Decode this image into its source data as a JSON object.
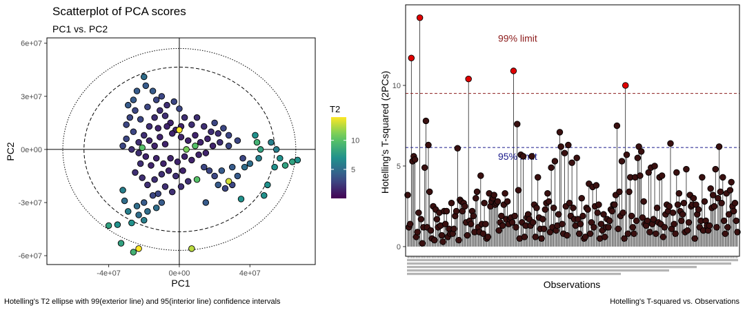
{
  "chart_data": [
    {
      "type": "scatter",
      "title": "Scatterplot of PCA scores",
      "subtitle": "PC1 vs. PC2",
      "xlabel": "PC1",
      "ylabel": "PC2",
      "caption": "Hotelling's T2 ellipse with 99(exterior line) and 95(interior line) confidence intervals",
      "xlim": [
        -75000000,
        77000000
      ],
      "ylim": [
        -65000000,
        63000000
      ],
      "xticks": [
        -40000000,
        0,
        40000000
      ],
      "xtick_labels": [
        "-4e+07",
        "0e+00",
        "4e+07"
      ],
      "yticks": [
        60000000,
        30000000,
        0,
        -30000000,
        -60000000
      ],
      "ytick_labels": [
        "6e+07",
        "3e+07",
        "0e+00",
        "-3e+07",
        "-6e+07"
      ],
      "ellipse_95": {
        "rx": 54000000,
        "ry": 46500000
      },
      "ellipse_99": {
        "rx": 66000000,
        "ry": 57000000
      },
      "color_scale": {
        "title": "T2",
        "min": 0,
        "max": 14,
        "ticks": [
          5,
          10
        ],
        "tick_labels": [
          "5",
          "10"
        ]
      },
      "points": [
        {
          "x": -40000000,
          "y": -43000000,
          "t2": 8
        },
        {
          "x": -35000000,
          "y": -42500000,
          "t2": 7
        },
        {
          "x": -33000000,
          "y": -53000000,
          "t2": 8
        },
        {
          "x": -26000000,
          "y": -58000000,
          "t2": 9
        },
        {
          "x": -23000000,
          "y": -56000000,
          "t2": 14
        },
        {
          "x": 7000000,
          "y": -56000000,
          "t2": 12.5
        },
        {
          "x": -27000000,
          "y": -41500000,
          "t2": 7
        },
        {
          "x": -20000000,
          "y": -40000000,
          "t2": 6
        },
        {
          "x": -32000000,
          "y": -23000000,
          "t2": 6
        },
        {
          "x": -31000000,
          "y": -29000000,
          "t2": 5
        },
        {
          "x": -29000000,
          "y": -35000000,
          "t2": 6
        },
        {
          "x": -24000000,
          "y": -32000000,
          "t2": 5
        },
        {
          "x": -23000000,
          "y": -37000000,
          "t2": 5
        },
        {
          "x": -18000000,
          "y": -35000000,
          "t2": 5
        },
        {
          "x": -20000000,
          "y": -30000000,
          "t2": 4
        },
        {
          "x": -13000000,
          "y": -33000000,
          "t2": 5
        },
        {
          "x": -10000000,
          "y": -30000000,
          "t2": 4
        },
        {
          "x": -12000000,
          "y": -25000000,
          "t2": 3
        },
        {
          "x": 15000000,
          "y": -30000000,
          "t2": 4
        },
        {
          "x": 10000000,
          "y": -17000000,
          "t2": 10
        },
        {
          "x": 28000000,
          "y": -18000000,
          "t2": 13
        },
        {
          "x": 35000000,
          "y": -28000000,
          "t2": 7
        },
        {
          "x": 48000000,
          "y": -26000000,
          "t2": 7
        },
        {
          "x": 50000000,
          "y": -20000000,
          "t2": 7
        },
        {
          "x": 54000000,
          "y": -10000000,
          "t2": 7
        },
        {
          "x": 57000000,
          "y": -5000000,
          "t2": 7
        },
        {
          "x": 60000000,
          "y": -9000000,
          "t2": 8
        },
        {
          "x": 64000000,
          "y": -7000000,
          "t2": 8
        },
        {
          "x": 67000000,
          "y": -6000000,
          "t2": 7
        },
        {
          "x": 55000000,
          "y": 0,
          "t2": 6
        },
        {
          "x": 52000000,
          "y": 4000000,
          "t2": 6
        },
        {
          "x": 44000000,
          "y": 4000000,
          "t2": 9
        },
        {
          "x": 46000000,
          "y": 0,
          "t2": 8
        },
        {
          "x": 43000000,
          "y": 8000000,
          "t2": 7
        },
        {
          "x": 45000000,
          "y": -5000000,
          "t2": 6
        },
        {
          "x": 40000000,
          "y": -8000000,
          "t2": 5
        },
        {
          "x": 37000000,
          "y": -10000000,
          "t2": 5
        },
        {
          "x": 30000000,
          "y": -10000000,
          "t2": 4
        },
        {
          "x": 24000000,
          "y": -12000000,
          "t2": 4
        },
        {
          "x": 20000000,
          "y": -15000000,
          "t2": 3
        },
        {
          "x": 17000000,
          "y": -12000000,
          "t2": 3
        },
        {
          "x": 14000000,
          "y": -10000000,
          "t2": 3
        },
        {
          "x": 22000000,
          "y": -20000000,
          "t2": 4
        },
        {
          "x": 26000000,
          "y": -22000000,
          "t2": 3
        },
        {
          "x": 30000000,
          "y": -20000000,
          "t2": 3
        },
        {
          "x": 33000000,
          "y": -15000000,
          "t2": 4
        },
        {
          "x": 36000000,
          "y": -5000000,
          "t2": 3
        },
        {
          "x": 33000000,
          "y": 5000000,
          "t2": 3
        },
        {
          "x": 28000000,
          "y": 8000000,
          "t2": 3
        },
        {
          "x": 23000000,
          "y": 4000000,
          "t2": 2
        },
        {
          "x": 25000000,
          "y": 12000000,
          "t2": 3
        },
        {
          "x": 20000000,
          "y": 15000000,
          "t2": 3
        },
        {
          "x": 18000000,
          "y": 10000000,
          "t2": 2
        },
        {
          "x": 14000000,
          "y": 13000000,
          "t2": 2
        },
        {
          "x": 10000000,
          "y": 18000000,
          "t2": 2
        },
        {
          "x": 7000000,
          "y": 14000000,
          "t2": 2
        },
        {
          "x": 3000000,
          "y": 18000000,
          "t2": 2
        },
        {
          "x": 0,
          "y": 23000000,
          "t2": 3
        },
        {
          "x": -3000000,
          "y": 27000000,
          "t2": 3
        },
        {
          "x": -7000000,
          "y": 25000000,
          "t2": 2
        },
        {
          "x": -10000000,
          "y": 30000000,
          "t2": 3
        },
        {
          "x": -13000000,
          "y": 28000000,
          "t2": 3
        },
        {
          "x": -15000000,
          "y": 33000000,
          "t2": 4
        },
        {
          "x": -19000000,
          "y": 36000000,
          "t2": 4
        },
        {
          "x": -20000000,
          "y": 41000000,
          "t2": 5
        },
        {
          "x": -24000000,
          "y": 33000000,
          "t2": 4
        },
        {
          "x": -26000000,
          "y": 28000000,
          "t2": 4
        },
        {
          "x": -29000000,
          "y": 25000000,
          "t2": 4
        },
        {
          "x": -25000000,
          "y": 22000000,
          "t2": 3
        },
        {
          "x": -28000000,
          "y": 18000000,
          "t2": 3
        },
        {
          "x": -30000000,
          "y": 14000000,
          "t2": 3
        },
        {
          "x": -26000000,
          "y": 10000000,
          "t2": 3
        },
        {
          "x": -30000000,
          "y": 6000000,
          "t2": 3
        },
        {
          "x": -32000000,
          "y": 2000000,
          "t2": 3
        },
        {
          "x": -27000000,
          "y": 0,
          "t2": 2
        },
        {
          "x": -23000000,
          "y": 4000000,
          "t2": 2
        },
        {
          "x": -20000000,
          "y": 8000000,
          "t2": 2
        },
        {
          "x": -17000000,
          "y": 13000000,
          "t2": 2
        },
        {
          "x": -14000000,
          "y": 18000000,
          "t2": 2
        },
        {
          "x": -11000000,
          "y": 22000000,
          "t2": 2
        },
        {
          "x": -8000000,
          "y": 19000000,
          "t2": 2
        },
        {
          "x": -5000000,
          "y": 15000000,
          "t2": 1.5
        },
        {
          "x": -2000000,
          "y": 11000000,
          "t2": 1.5
        },
        {
          "x": 1000000,
          "y": 7000000,
          "t2": 1.5
        },
        {
          "x": 5000000,
          "y": 5000000,
          "t2": 1.5
        },
        {
          "x": 9000000,
          "y": 8000000,
          "t2": 1.5
        },
        {
          "x": 12000000,
          "y": 4000000,
          "t2": 1.5
        },
        {
          "x": 16000000,
          "y": 6000000,
          "t2": 1.5
        },
        {
          "x": 19000000,
          "y": 2000000,
          "t2": 1.5
        },
        {
          "x": 15000000,
          "y": -2000000,
          "t2": 1.5
        },
        {
          "x": 11000000,
          "y": -3000000,
          "t2": 1.5
        },
        {
          "x": 7000000,
          "y": -6000000,
          "t2": 1.5
        },
        {
          "x": 3000000,
          "y": -4000000,
          "t2": 1.5
        },
        {
          "x": -1000000,
          "y": -7000000,
          "t2": 1.5
        },
        {
          "x": -5000000,
          "y": -5000000,
          "t2": 1.5
        },
        {
          "x": -9000000,
          "y": -8000000,
          "t2": 1.5
        },
        {
          "x": -13000000,
          "y": -5000000,
          "t2": 1.5
        },
        {
          "x": -16000000,
          "y": -9000000,
          "t2": 1.5
        },
        {
          "x": -19000000,
          "y": -4000000,
          "t2": 1.5
        },
        {
          "x": -22000000,
          "y": -8000000,
          "t2": 2
        },
        {
          "x": -25000000,
          "y": -13000000,
          "t2": 2
        },
        {
          "x": -21000000,
          "y": -16000000,
          "t2": 2
        },
        {
          "x": -18000000,
          "y": -20000000,
          "t2": 2
        },
        {
          "x": -14000000,
          "y": -17000000,
          "t2": 2
        },
        {
          "x": -10000000,
          "y": -14000000,
          "t2": 2
        },
        {
          "x": -6000000,
          "y": -12000000,
          "t2": 1.5
        },
        {
          "x": -2000000,
          "y": -15000000,
          "t2": 2
        },
        {
          "x": 2000000,
          "y": -12000000,
          "t2": 1.5
        },
        {
          "x": 5000000,
          "y": -18000000,
          "t2": 2
        },
        {
          "x": 1000000,
          "y": -21000000,
          "t2": 2
        },
        {
          "x": -4000000,
          "y": -24000000,
          "t2": 2
        },
        {
          "x": -8000000,
          "y": -21000000,
          "t2": 2
        },
        {
          "x": -15000000,
          "y": -26000000,
          "t2": 3
        },
        {
          "x": -8000000,
          "y": 3000000,
          "t2": 1.5
        },
        {
          "x": -11000000,
          "y": 7000000,
          "t2": 1.5
        },
        {
          "x": -14000000,
          "y": 2000000,
          "t2": 1.5
        },
        {
          "x": -17000000,
          "y": 5000000,
          "t2": 1.5
        },
        {
          "x": -4000000,
          "y": 9000000,
          "t2": 1.5
        },
        {
          "x": -7000000,
          "y": 13000000,
          "t2": 1.5
        },
        {
          "x": -12000000,
          "y": 12000000,
          "t2": 1.5
        },
        {
          "x": 1000000,
          "y": 13000000,
          "t2": 1.5
        },
        {
          "x": -18000000,
          "y": 24000000,
          "t2": 3
        },
        {
          "x": -22000000,
          "y": 17000000,
          "t2": 3
        },
        {
          "x": -23000000,
          "y": -2000000,
          "t2": 2
        },
        {
          "x": -21000000,
          "y": 1000000,
          "t2": 10
        },
        {
          "x": 0,
          "y": 11000000,
          "t2": 14
        },
        {
          "x": 4000000,
          "y": 0,
          "t2": 11
        },
        {
          "x": 9000000,
          "y": 2000000,
          "t2": 10
        },
        {
          "x": 22000000,
          "y": 9000000,
          "t2": 2
        },
        {
          "x": 28000000,
          "y": 2000000,
          "t2": 3
        }
      ]
    },
    {
      "type": "scatter",
      "subtype": "lollipop",
      "title": "",
      "xlabel": "Observations",
      "ylabel": "Hotelling's T-squared (2PCs)",
      "caption": "Hotelling's T-squared vs. Observations",
      "ylim": [
        -0.6,
        15
      ],
      "yticks": [
        0,
        5,
        10
      ],
      "ytick_labels": [
        "0",
        "5",
        "10"
      ],
      "limits": [
        {
          "label": "99% limit",
          "value": 9.5,
          "color": "#8b1a1a"
        },
        {
          "label": "95% limit",
          "value": 6.15,
          "color": "#1a1a8b"
        }
      ],
      "values": [
        3.2,
        1.2,
        1.4,
        11.7,
        5.3,
        5.6,
        5.4,
        0.6,
        0.9,
        2.1,
        14.2,
        1.7,
        0.2,
        1.2,
        4.9,
        7.8,
        1.2,
        6.3,
        3.4,
        1.0,
        0.5,
        2.5,
        0.4,
        2.3,
        1.7,
        1.2,
        2.1,
        1.3,
        0.7,
        0.3,
        2.2,
        1.4,
        2.2,
        0.6,
        1.1,
        0.8,
        2.7,
        0.8,
        1.1,
        1.9,
        2.2,
        6.1,
        0.4,
        2.9,
        2.8,
        2.2,
        2.7,
        2.5,
        1.5,
        0.7,
        10.4,
        1.6,
        1.4,
        2.2,
        1.9,
        0.9,
        3.0,
        3.4,
        1.2,
        0.9,
        4.4,
        1.4,
        0.8,
        2.7,
        1.4,
        0.5,
        0.6,
        3.3,
        2.5,
        2.8,
        3.0,
        3.2,
        2.6,
        2.7,
        2.8,
        1.0,
        1.5,
        1.9,
        1.3,
        2.6,
        3.3,
        1.7,
        2.8,
        1.4,
        1.7,
        1.8,
        1.5,
        10.9,
        1.9,
        1.2,
        7.6,
        3.5,
        0.5,
        5.7,
        1.5,
        5.6,
        0.6,
        1.3,
        1.8,
        2.0,
        1.7,
        1.3,
        5.6,
        1.5,
        2.6,
        0.6,
        2.4,
        4.3,
        1.8,
        1.1,
        0.5,
        1.7,
        1.1,
        2.3,
        2.7,
        3.3,
        2.8,
        0.9,
        4.9,
        1.2,
        2.4,
        5.3,
        1.0,
        1.3,
        2.0,
        7.1,
        6.2,
        1.4,
        0.8,
        5.8,
        2.5,
        0.7,
        6.3,
        2.7,
        1.9,
        5.2,
        2.4,
        1.7,
        1.3,
        5.5,
        1.7,
        0.8,
        1.4,
        3.0,
        1.9,
        0.5,
        0.6,
        2.4,
        2.3,
        3.9,
        0.8,
        1.5,
        3.7,
        1.2,
        2.5,
        3.8,
        2.1,
        2.6,
        0.5,
        1.4,
        1.0,
        2.0,
        0.6,
        1.2,
        1.7,
        1.2,
        1.6,
        2.3,
        2.2,
        2.6,
        2.6,
        3.2,
        7.5,
        1.1,
        3.4,
        1.9,
        5.3,
        2.1,
        0.5,
        10.0,
        5.7,
        0.8,
        3.4,
        4.3,
        1.9,
        1.2,
        0.8,
        4.3,
        1.6,
        5.5,
        6.2,
        4.4,
        5.9,
        1.8,
        2.8,
        1.4,
        1.3,
        1.6,
        4.6,
        0.9,
        4.9,
        1.4,
        1.7,
        5.0,
        0.8,
        2.4,
        1.5,
        4.3,
        1.4,
        4.4,
        0.6,
        1.2,
        2.0,
        2.6,
        2.2,
        2.5,
        6.4,
        1.1,
        2.1,
        1.4,
        0.8,
        4.6,
        2.6,
        3.3,
        2.2,
        1.6,
        2.0,
        2.7,
        0.9,
        4.8,
        1.0,
        1.5,
        3.2,
        2.5,
        2.6,
        3.0,
        0.5,
        2.6,
        2.0,
        2.3,
        1.2,
        1.6,
        4.3,
        1.0,
        2.8,
        1.6,
        1.3,
        1.0,
        1.3,
        3.6,
        2.4,
        3.2,
        2.5,
        4.8,
        1.2,
        3.0,
        6.2,
        3.4,
        2.7,
        4.3,
        1.6,
        0.8,
        3.3,
        1.2,
        2.0,
        3.5,
        4.0,
        2.5,
        2.2,
        2.7,
        1.6,
        0.9
      ]
    }
  ]
}
